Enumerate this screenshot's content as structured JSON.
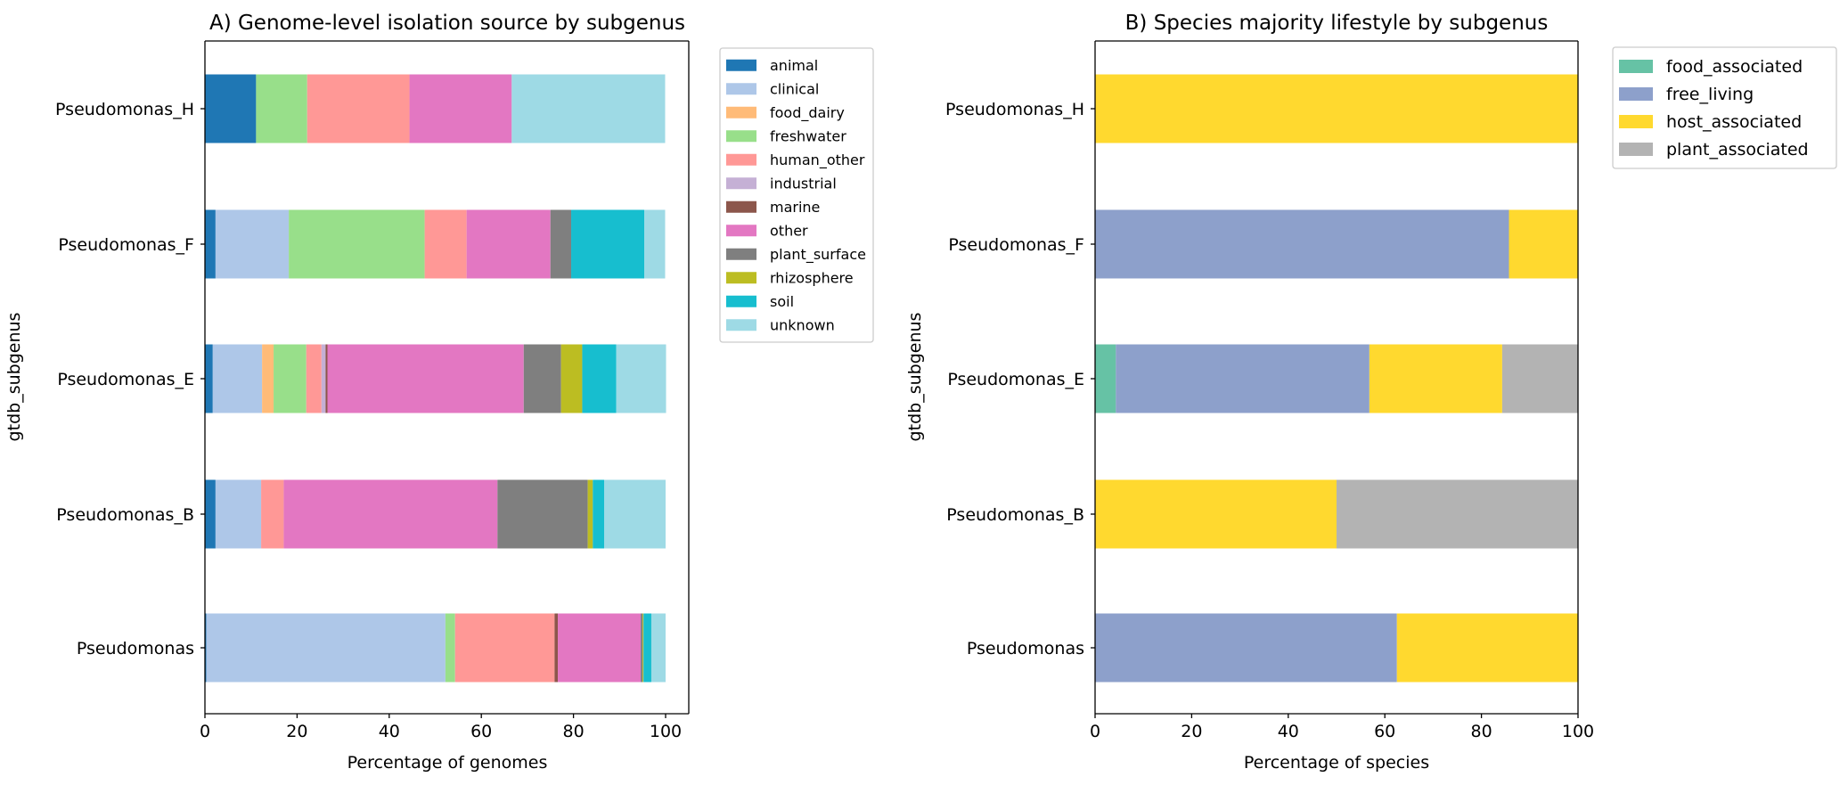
{
  "chart_data": [
    {
      "type": "bar",
      "orientation": "horizontal",
      "stacked": true,
      "title": "A) Genome-level isolation source by subgenus",
      "xlabel": "Percentage of genomes",
      "ylabel": "gtdb_subgenus",
      "xlim": [
        0,
        100
      ],
      "xticks": [
        "0",
        "20",
        "40",
        "60",
        "80",
        "100"
      ],
      "categories": [
        "Pseudomonas",
        "Pseudomonas_B",
        "Pseudomonas_E",
        "Pseudomonas_F",
        "Pseudomonas_H"
      ],
      "legend_position": "outside-right",
      "series": [
        {
          "name": "animal",
          "color": "#1f77b4",
          "values": [
            0.3,
            2.3,
            1.7,
            2.3,
            11.1
          ]
        },
        {
          "name": "clinical",
          "color": "#aec7e8",
          "values": [
            51.9,
            9.9,
            10.7,
            15.9,
            0
          ]
        },
        {
          "name": "food_dairy",
          "color": "#ffbb78",
          "values": [
            0,
            0,
            2.5,
            0,
            0
          ]
        },
        {
          "name": "freshwater",
          "color": "#98df8a",
          "values": [
            2.1,
            0,
            7.1,
            29.5,
            11.1
          ]
        },
        {
          "name": "human_other",
          "color": "#ff9896",
          "values": [
            21.6,
            4.9,
            3.3,
            9.1,
            22.2
          ]
        },
        {
          "name": "industrial",
          "color": "#c5b0d5",
          "values": [
            0,
            0,
            0.9,
            0,
            0
          ]
        },
        {
          "name": "marine",
          "color": "#8c564b",
          "values": [
            0.7,
            0,
            0.4,
            0,
            0
          ]
        },
        {
          "name": "other",
          "color": "#e377c2",
          "values": [
            18.0,
            46.4,
            42.6,
            18.2,
            22.2
          ]
        },
        {
          "name": "plant_surface",
          "color": "#7f7f7f",
          "values": [
            0.4,
            19.6,
            8.1,
            4.5,
            0
          ]
        },
        {
          "name": "rhizosphere",
          "color": "#bcbd22",
          "values": [
            0.2,
            1.1,
            4.6,
            0,
            0
          ]
        },
        {
          "name": "soil",
          "color": "#17becf",
          "values": [
            1.7,
            2.5,
            7.4,
            15.9,
            0
          ]
        },
        {
          "name": "unknown",
          "color": "#9edae5",
          "values": [
            3.1,
            13.3,
            10.8,
            4.5,
            33.3
          ]
        }
      ]
    },
    {
      "type": "bar",
      "orientation": "horizontal",
      "stacked": true,
      "title": "B) Species majority lifestyle by subgenus",
      "xlabel": "Percentage of species",
      "ylabel": "gtdb_subgenus",
      "xlim": [
        0,
        100
      ],
      "xticks": [
        "0",
        "20",
        "40",
        "60",
        "80",
        "100"
      ],
      "categories": [
        "Pseudomonas",
        "Pseudomonas_B",
        "Pseudomonas_E",
        "Pseudomonas_F",
        "Pseudomonas_H"
      ],
      "legend_position": "outside-right",
      "series": [
        {
          "name": "food_associated",
          "color": "#66c2a5",
          "values": [
            0,
            0,
            4.3,
            0,
            0
          ]
        },
        {
          "name": "free_living",
          "color": "#8da0cb",
          "values": [
            62.5,
            0,
            52.5,
            85.7,
            0
          ]
        },
        {
          "name": "host_associated",
          "color": "#ffd92f",
          "values": [
            37.5,
            50.0,
            27.5,
            14.3,
            100
          ]
        },
        {
          "name": "plant_associated",
          "color": "#b3b3b3",
          "values": [
            0,
            50.0,
            15.7,
            0,
            0
          ]
        }
      ]
    }
  ]
}
